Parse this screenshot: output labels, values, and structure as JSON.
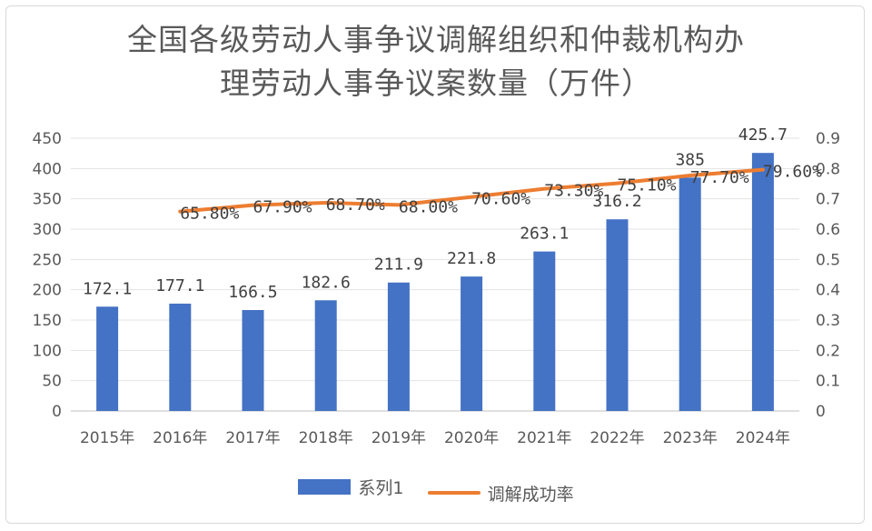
{
  "chart_data": {
    "type": "bar",
    "title_line1": "全国各级劳动人事争议调解组织和仲裁机构办",
    "title_line2": "理劳动人事争议案数量（万件）",
    "categories": [
      "2015年",
      "2016年",
      "2017年",
      "2018年",
      "2019年",
      "2020年",
      "2021年",
      "2022年",
      "2023年",
      "2024年"
    ],
    "series": [
      {
        "name": "系列1",
        "type": "bar",
        "axis": "left",
        "color": "#4472c4",
        "values": [
          172.1,
          177.1,
          166.5,
          182.6,
          211.9,
          221.8,
          263.1,
          316.2,
          385,
          425.7
        ],
        "labels": [
          "172.1",
          "177.1",
          "166.5",
          "182.6",
          "211.9",
          "221.8",
          "263.1",
          "316.2",
          "385",
          "425.7"
        ]
      },
      {
        "name": "调解成功率",
        "type": "line",
        "axis": "right",
        "color": "#ed7d31",
        "values": [
          null,
          0.658,
          0.679,
          0.687,
          0.68,
          0.706,
          0.733,
          0.751,
          0.777,
          0.796
        ],
        "labels": [
          null,
          "65.80%",
          "67.90%",
          "68.70%",
          "68.00%",
          "70.60%",
          "73.30%",
          "75.10%",
          "77.70%",
          "79.60%"
        ]
      }
    ],
    "ylim_left": [
      0,
      450
    ],
    "yticks_left": [
      "0",
      "50",
      "100",
      "150",
      "200",
      "250",
      "300",
      "350",
      "400",
      "450"
    ],
    "ylim_right": [
      0,
      0.9
    ],
    "yticks_right": [
      "0",
      "0.1",
      "0.2",
      "0.3",
      "0.4",
      "0.5",
      "0.6",
      "0.7",
      "0.8",
      "0.9"
    ],
    "grid": true,
    "legend_position": "bottom"
  }
}
